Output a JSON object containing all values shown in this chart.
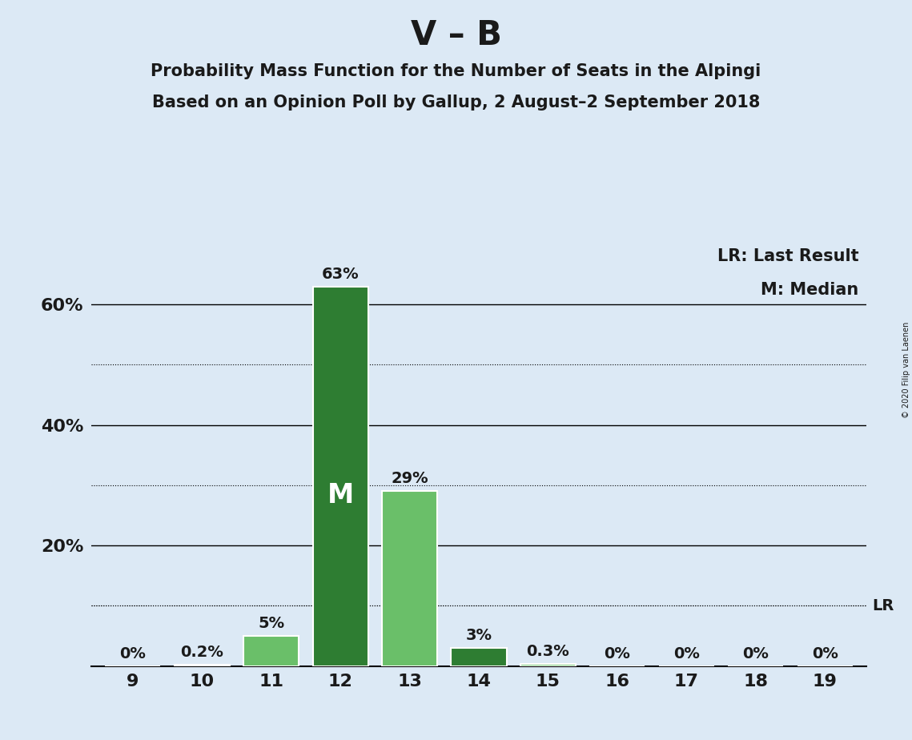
{
  "title": "V – B",
  "subtitle1": "Probability Mass Function for the Number of Seats in the Alpingi",
  "subtitle2": "Based on an Opinion Poll by Gallup, 2 August–2 September 2018",
  "copyright": "© 2020 Filip van Laenen",
  "seats": [
    9,
    10,
    11,
    12,
    13,
    14,
    15,
    16,
    17,
    18,
    19
  ],
  "probabilities": [
    0.0,
    0.2,
    5.0,
    63.0,
    29.0,
    3.0,
    0.3,
    0.0,
    0.0,
    0.0,
    0.0
  ],
  "labels": [
    "0%",
    "0.2%",
    "5%",
    "63%",
    "29%",
    "3%",
    "0.3%",
    "0%",
    "0%",
    "0%",
    "0%"
  ],
  "bar_colors": [
    "#6abf69",
    "#6abf69",
    "#6abf69",
    "#2e7d32",
    "#6abf69",
    "#2e7d32",
    "#6abf69",
    "#6abf69",
    "#6abf69",
    "#6abf69",
    "#6abf69"
  ],
  "median_seat": 12,
  "lr_seat": 19,
  "legend_lr": "LR: Last Result",
  "legend_m": "M: Median",
  "background_color": "#dce9f5",
  "ylim": [
    0,
    70
  ],
  "solid_lines": [
    20,
    40,
    60
  ],
  "dotted_lines": [
    10,
    30,
    50
  ],
  "title_fontsize": 30,
  "subtitle_fontsize": 15,
  "label_fontsize": 14,
  "tick_fontsize": 16,
  "legend_fontsize": 15,
  "bar_label_color": "#1a1a1a",
  "text_color": "#1a1a1a"
}
